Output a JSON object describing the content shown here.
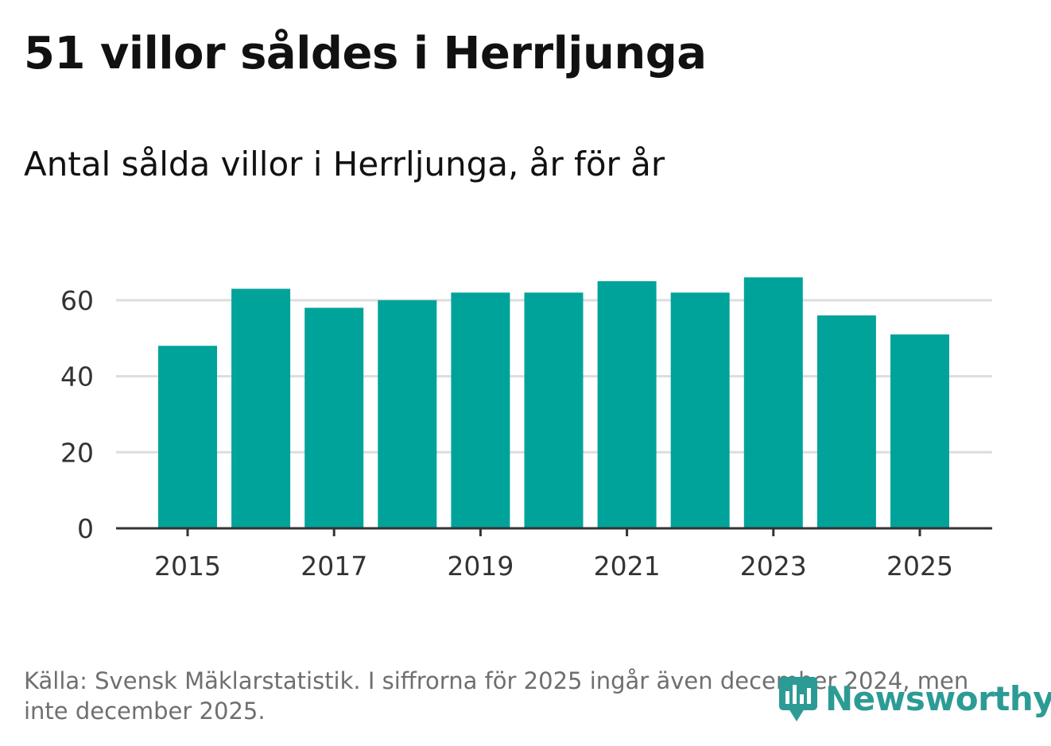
{
  "title": "51 villor såldes i Herrljunga",
  "subtitle": "Antal sålda villor i Herrljunga, år för år",
  "footnote": "Källa: Svensk Mäklarstatistik. I siffrorna för 2025 ingår även december 2024, men inte december 2025.",
  "logo": {
    "text": "Newsworthy",
    "icon": "bar-chart-speech-bubble-icon",
    "color": "#2d9b95"
  },
  "colors": {
    "bar": "#00a39a",
    "grid": "#dddddd",
    "axis": "#333333",
    "tick_text": "#333333"
  },
  "chart_data": {
    "type": "bar",
    "title": "51 villor såldes i Herrljunga",
    "subtitle": "Antal sålda villor i Herrljunga, år för år",
    "xlabel": "",
    "ylabel": "",
    "categories": [
      "2015",
      "2016",
      "2017",
      "2018",
      "2019",
      "2020",
      "2021",
      "2022",
      "2023",
      "2024",
      "2025"
    ],
    "values": [
      48,
      63,
      58,
      60,
      62,
      62,
      65,
      62,
      66,
      56,
      51
    ],
    "ylim": [
      0,
      70
    ],
    "yticks": [
      0,
      20,
      40,
      60
    ],
    "xtick_labels": [
      "2015",
      "2017",
      "2019",
      "2021",
      "2023",
      "2025"
    ],
    "grid": true,
    "legend": "none"
  }
}
